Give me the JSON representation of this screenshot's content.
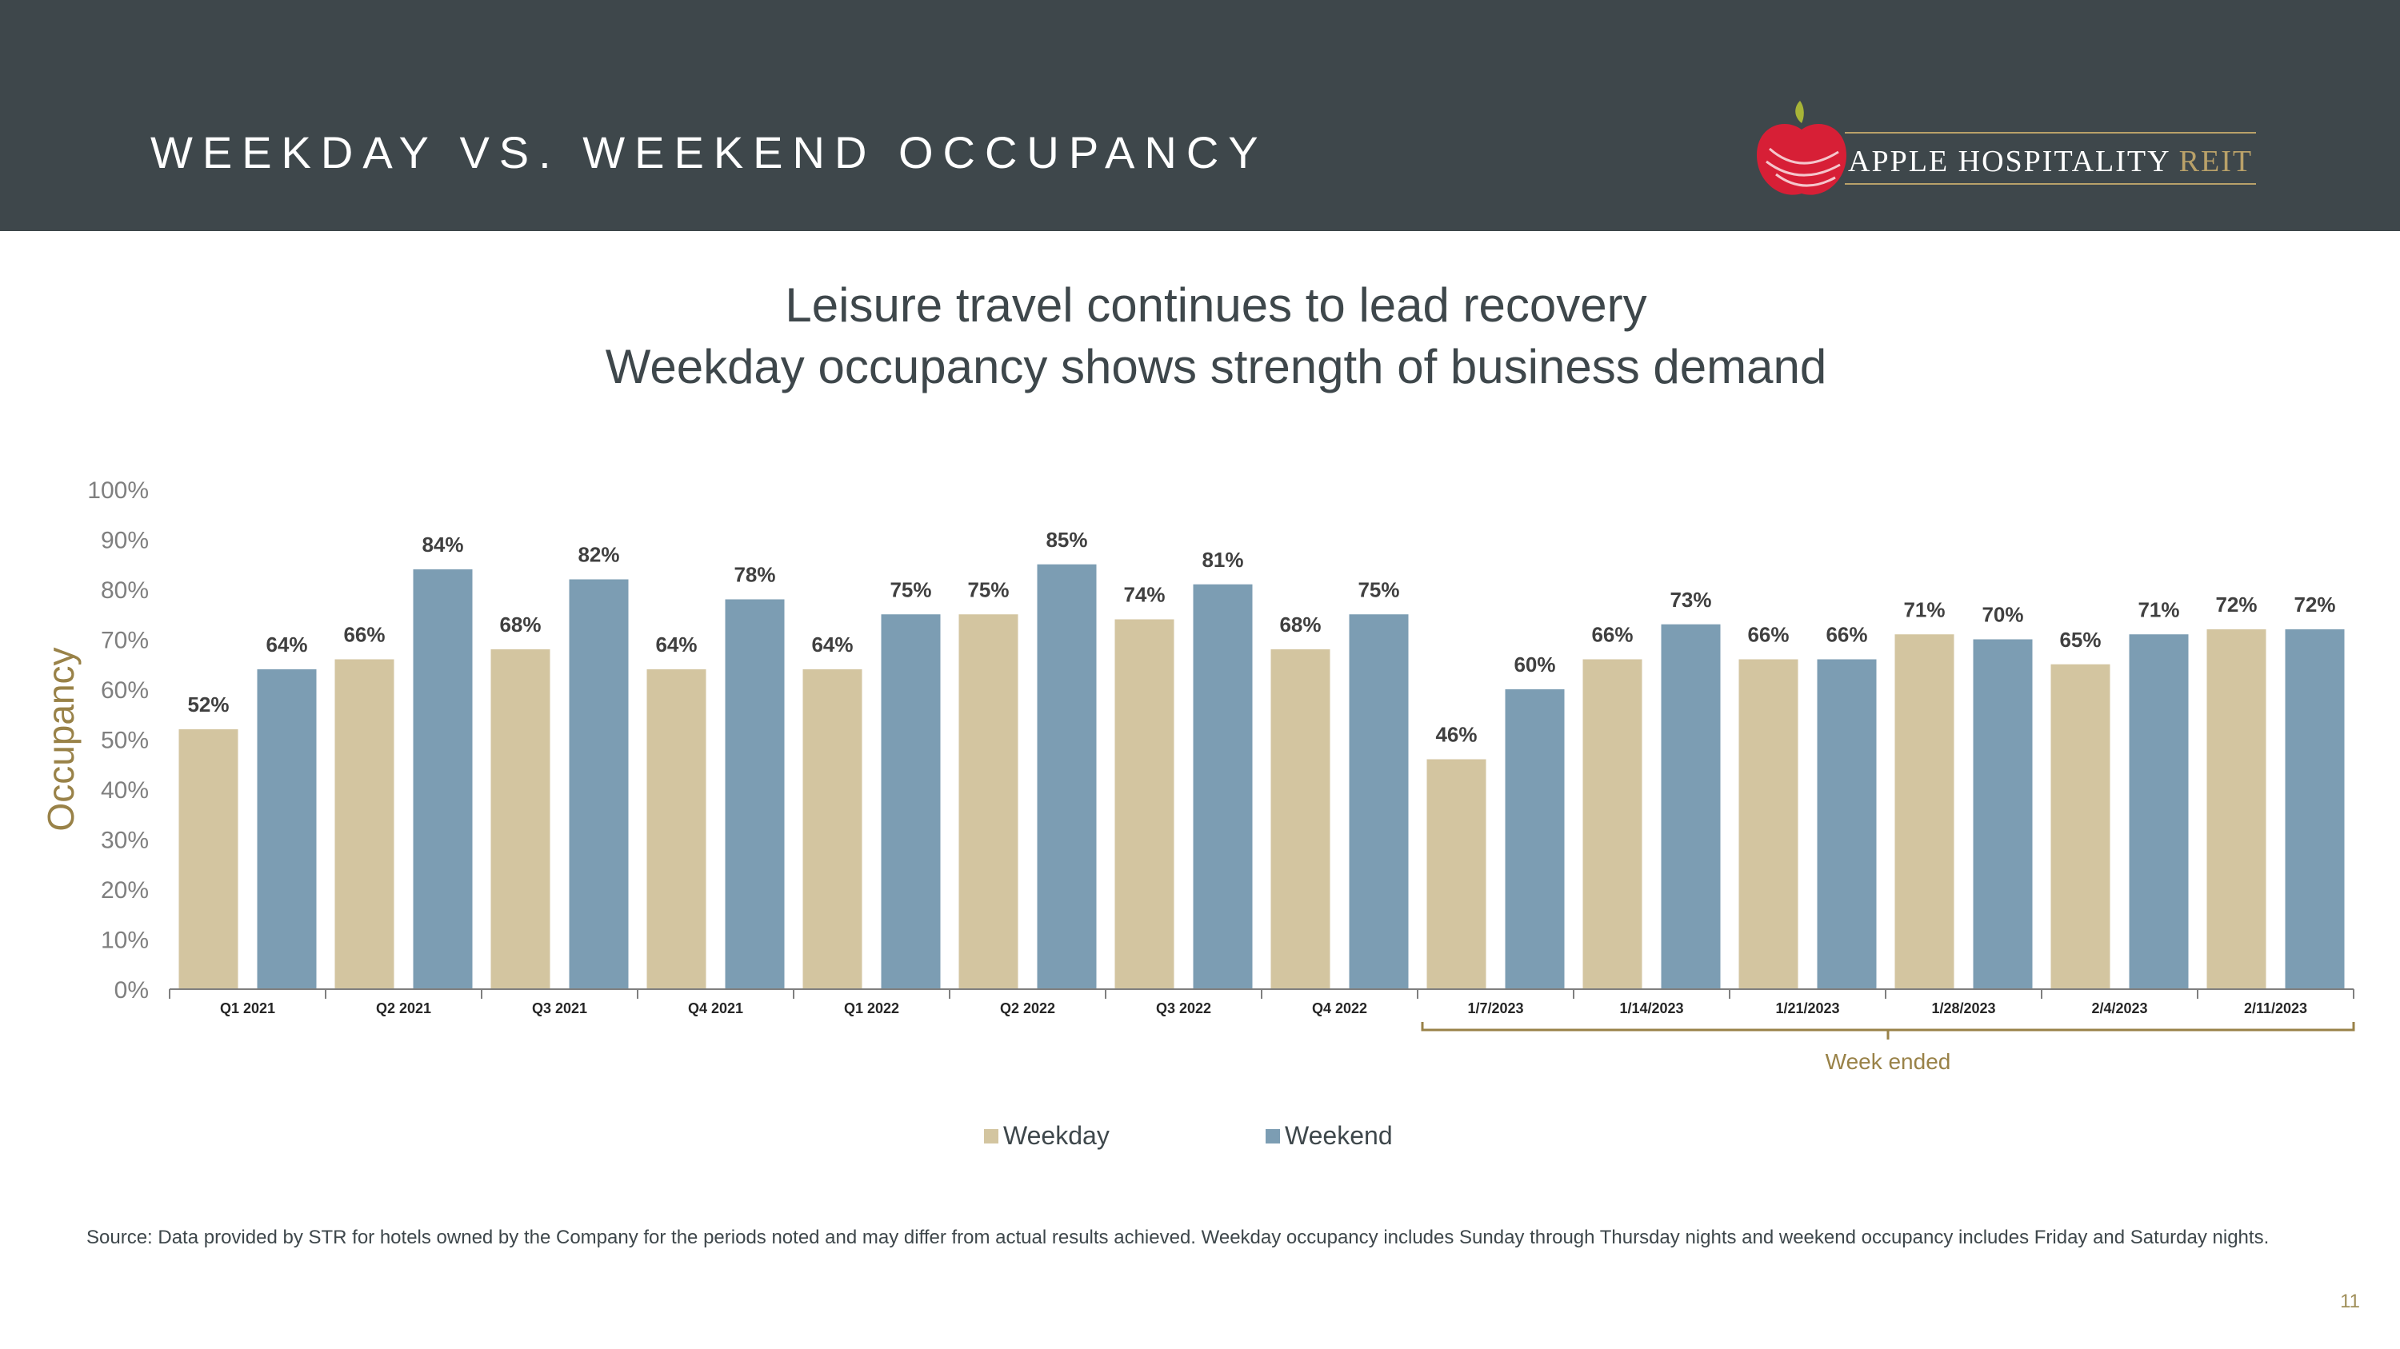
{
  "slide": {
    "title": "WEEKDAY VS. WEEKEND OCCUPANCY",
    "subtitle_line1": "Leisure travel continues to lead recovery",
    "subtitle_line2": "Weekday occupancy shows strength of business demand",
    "source_note": "Source:  Data provided by STR for hotels owned by the Company for the periods noted and may differ from actual results achieved. Weekday occupancy includes Sunday through Thursday nights and weekend occupancy includes Friday and Saturday nights.",
    "page_number": "11"
  },
  "logo": {
    "name_main": "APPLE HOSPITALITY ",
    "name_accent": "REIT",
    "apple_color": "#d71f36",
    "leaf_color": "#a7b437",
    "gold_color": "#b9a169"
  },
  "colors": {
    "header_bg": "#3e474b",
    "weekday": "#d3c5a0",
    "weekend": "#7c9db3",
    "axis_label": "#998248",
    "tick_text": "#7f7f7f",
    "label_text": "#404040"
  },
  "chart_data": {
    "type": "bar",
    "title": "",
    "ylabel": "Occupancy",
    "xlabel": "",
    "ylim": [
      0,
      100
    ],
    "y_ticks": [
      "0%",
      "10%",
      "20%",
      "30%",
      "40%",
      "50%",
      "60%",
      "70%",
      "80%",
      "90%",
      "100%"
    ],
    "categories": [
      "Q1 2021",
      "Q2 2021",
      "Q3 2021",
      "Q4 2021",
      "Q1 2022",
      "Q2 2022",
      "Q3 2022",
      "Q4 2022",
      "1/7/2023",
      "1/14/2023",
      "1/21/2023",
      "1/28/2023",
      "2/4/2023",
      "2/11/2023"
    ],
    "series": [
      {
        "name": "Weekday",
        "values": [
          52,
          66,
          68,
          64,
          64,
          75,
          74,
          68,
          46,
          66,
          66,
          71,
          65,
          72
        ],
        "labels": [
          "52%",
          "66%",
          "68%",
          "64%",
          "64%",
          "75%",
          "74%",
          "68%",
          "46%",
          "66%",
          "66%",
          "71%",
          "65%",
          "72%"
        ]
      },
      {
        "name": "Weekend",
        "values": [
          64,
          84,
          82,
          78,
          75,
          85,
          81,
          75,
          60,
          73,
          66,
          70,
          71,
          72
        ],
        "labels": [
          "64%",
          "84%",
          "82%",
          "78%",
          "75%",
          "85%",
          "81%",
          "75%",
          "60%",
          "73%",
          "66%",
          "70%",
          "71%",
          "72%"
        ]
      }
    ],
    "bracket_label": "Week ended",
    "bracket_start_index": 8,
    "legend": [
      "Weekday",
      "Weekend"
    ],
    "legend_position": "bottom",
    "grid": false
  }
}
